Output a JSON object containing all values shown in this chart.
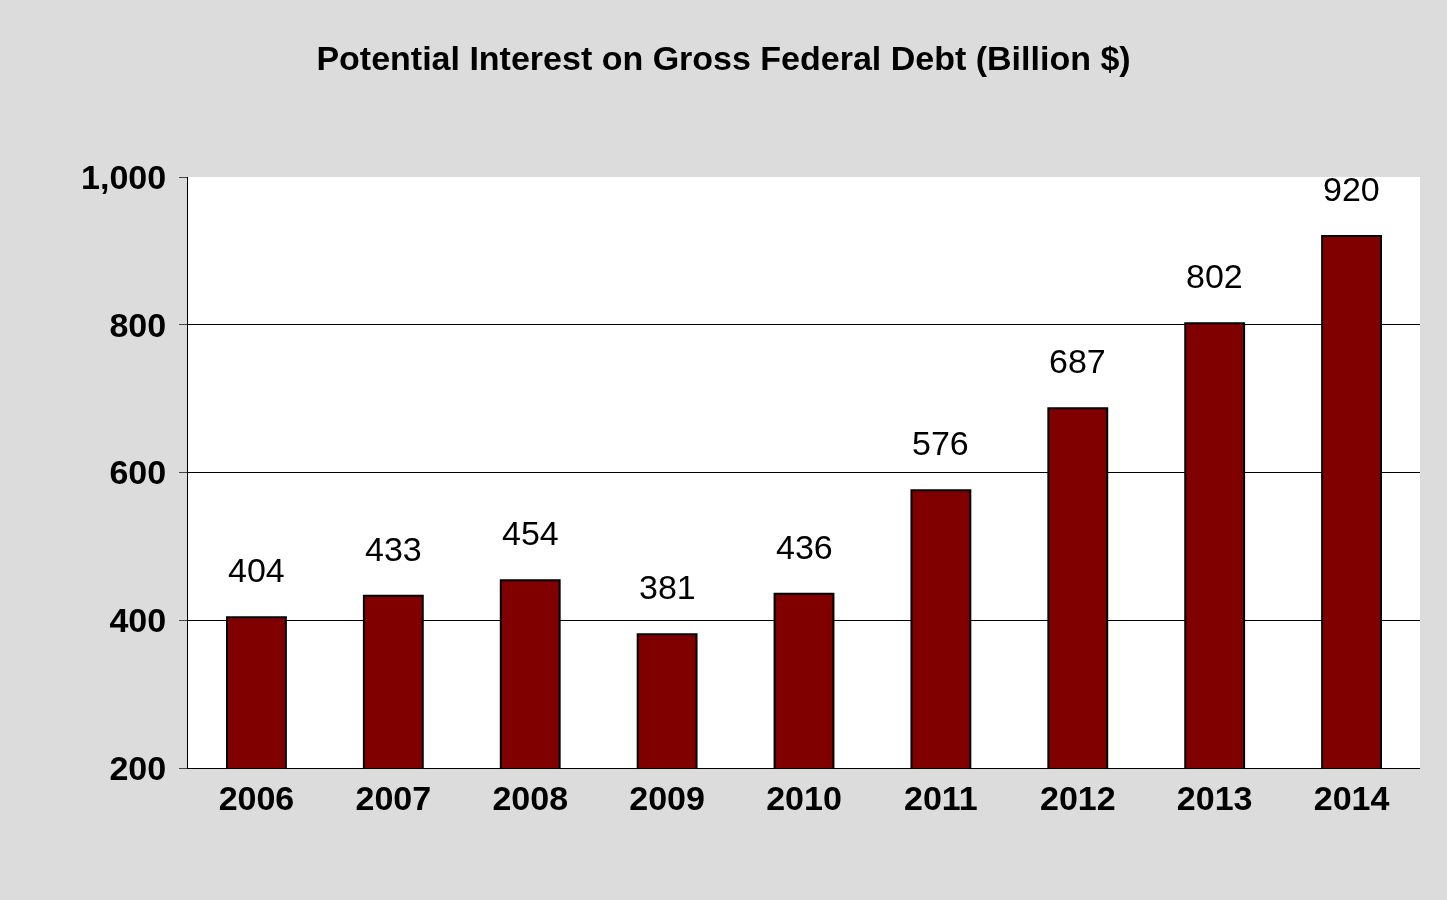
{
  "chart_data": {
    "type": "bar",
    "title": "Potential Interest on Gross Federal Debt (Billion $)",
    "categories": [
      "2006",
      "2007",
      "2008",
      "2009",
      "2010",
      "2011",
      "2012",
      "2013",
      "2014"
    ],
    "values": [
      404,
      433,
      454,
      381,
      436,
      576,
      687,
      802,
      920
    ],
    "color": "#800000",
    "ylim": [
      200,
      1000
    ],
    "yticks": [
      200,
      400,
      600,
      800,
      {
        "value": 1000,
        "label": "1,000"
      }
    ],
    "grid": "y",
    "data_labels": true
  }
}
